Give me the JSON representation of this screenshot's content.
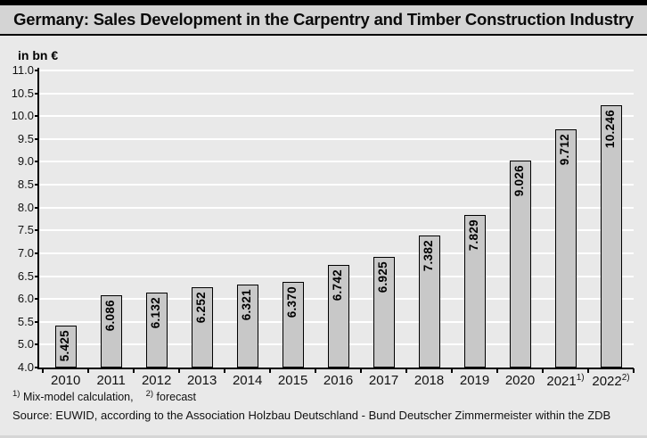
{
  "title": "Germany: Sales Development in the Carpentry and Timber Construction Industry",
  "unit_label": "in bn €",
  "footnote": {
    "sup1": "1)",
    "text1": "Mix-model calculation,",
    "sup2": "2)",
    "text2": "forecast"
  },
  "source": "Source: EUWID, according to the Association Holzbau Deutschland - Bund Deutscher Zimmermeister within the ZDB",
  "colors": {
    "background": "#e9e9e9",
    "title_band": "#d4d4d4",
    "bar_fill": "#c8c8c8",
    "bar_border": "#000000",
    "gridline": "#ffffff",
    "axis": "#000000",
    "text": "#111111"
  },
  "chart_data": {
    "type": "bar",
    "title": "Germany: Sales Development in the Carpentry and Timber Construction Industry",
    "ylabel": "in bn €",
    "categories": [
      "2010",
      "2011",
      "2012",
      "2013",
      "2014",
      "2015",
      "2016",
      "2017",
      "2018",
      "2019",
      "2020",
      "2021",
      "2022"
    ],
    "category_sups": [
      "",
      "",
      "",
      "",
      "",
      "",
      "",
      "",
      "",
      "",
      "",
      "1)",
      "2)"
    ],
    "values": [
      5.425,
      6.086,
      6.132,
      6.252,
      6.321,
      6.37,
      6.742,
      6.925,
      7.382,
      7.829,
      9.026,
      9.712,
      10.246
    ],
    "value_labels": [
      "5.425",
      "6.086",
      "6.132",
      "6.252",
      "6.321",
      "6.370",
      "6.742",
      "6.925",
      "7.382",
      "7.829",
      "9.026",
      "9.712",
      "10.246"
    ],
    "y_tick_labels": [
      "11.0",
      "10.5",
      "10.0",
      "9.5",
      "9.0",
      "8.5",
      "8.0",
      "7.5",
      "7.0",
      "6.5",
      "6.0",
      "5.5",
      "5.0",
      "4.0"
    ],
    "ylim_effective": [
      4.5,
      11.0
    ],
    "y_tick_step": 0.5,
    "grid": true,
    "legend_position": "none",
    "bar_color": "#c8c8c8"
  }
}
